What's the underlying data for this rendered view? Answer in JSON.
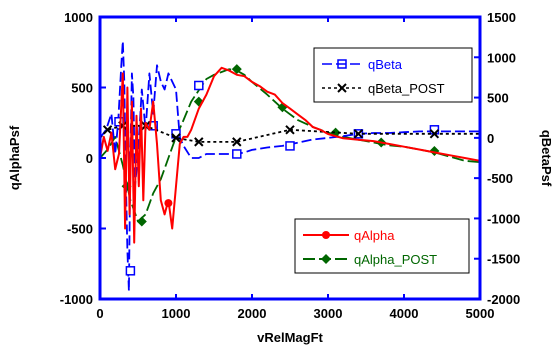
{
  "chart_data": {
    "type": "line",
    "xlabel": "vRelMagFt",
    "ylabel_left": "qAlphaPsf",
    "ylabel_right": "qBetaPsf",
    "xlim": [
      0,
      5000
    ],
    "ylim_left": [
      -1000,
      1000
    ],
    "ylim_right": [
      -2000,
      1500
    ],
    "x_ticks": [
      "0",
      "1000",
      "2000",
      "3000",
      "4000",
      "5000"
    ],
    "y_ticks_left": [
      "-1000",
      "-500",
      "0",
      "500",
      "1000"
    ],
    "y_ticks_right": [
      "-2000",
      "-1500",
      "-1000",
      "-500",
      "0",
      "500",
      "1000",
      "1500"
    ],
    "colors": {
      "qBeta": "#0000ff",
      "qBeta_POST": "#000000",
      "qAlpha": "#ff0000",
      "qAlpha_POST": "#006600",
      "frame": "#0000ff"
    },
    "legend_top": {
      "position": "top-right",
      "entries": [
        "qBeta",
        "qBeta_POST"
      ]
    },
    "legend_bottom": {
      "position": "bottom-right",
      "entries": [
        "qAlpha",
        "qAlpha_POST"
      ]
    },
    "series": [
      {
        "name": "qBeta",
        "axis": "right",
        "marker": "square",
        "dash": "10,4",
        "x": [
          0,
          80,
          150,
          200,
          240,
          280,
          300,
          320,
          340,
          360,
          380,
          400,
          420,
          440,
          460,
          500,
          550,
          600,
          650,
          700,
          750,
          800,
          850,
          900,
          950,
          1000,
          1050,
          1100,
          1200,
          1300,
          1400,
          1500,
          1600,
          1700,
          1800,
          1900,
          2000,
          2200,
          2400,
          2600,
          2800,
          3000,
          3200,
          3400,
          3600,
          3800,
          4000,
          4200,
          4400,
          4600,
          4800,
          5000
        ],
        "y": [
          0,
          100,
          300,
          -200,
          200,
          900,
          1200,
          700,
          -500,
          -1400,
          -1900,
          -200,
          800,
          500,
          -600,
          -200,
          600,
          100,
          800,
          300,
          900,
          700,
          600,
          800,
          700,
          600,
          0,
          -100,
          -250,
          -250,
          -200,
          -200,
          -200,
          -200,
          -200,
          -180,
          -150,
          -120,
          -100,
          -60,
          -20,
          0,
          20,
          50,
          60,
          60,
          70,
          80,
          80,
          80,
          80,
          80
        ],
        "marker_x": [
          250,
          400,
          700,
          1000,
          1300,
          1800,
          2500,
          3400,
          4400
        ],
        "marker_y": [
          200,
          -1650,
          150,
          50,
          650,
          -200,
          -100,
          50,
          100
        ]
      },
      {
        "name": "qBeta_POST",
        "axis": "right",
        "marker": "x",
        "dash": "3,3",
        "x": [
          0,
          100,
          300,
          600,
          1000,
          1300,
          1800,
          2500,
          3400,
          4400,
          5000
        ],
        "y": [
          0,
          100,
          150,
          150,
          0,
          -50,
          -50,
          100,
          50,
          50,
          50
        ],
        "marker_x": [
          100,
          300,
          600,
          1000,
          1300,
          1800,
          2500,
          3400,
          4400
        ],
        "marker_y": [
          100,
          150,
          150,
          0,
          -50,
          -50,
          100,
          50,
          50
        ]
      },
      {
        "name": "qAlpha",
        "axis": "left",
        "marker": "circle",
        "dash": "",
        "x": [
          0,
          50,
          100,
          150,
          200,
          250,
          300,
          330,
          360,
          390,
          420,
          450,
          480,
          510,
          540,
          570,
          600,
          650,
          700,
          750,
          800,
          850,
          900,
          950,
          1000,
          1050,
          1100,
          1150,
          1200,
          1300,
          1400,
          1500,
          1600,
          1700,
          1800,
          1900,
          2000,
          2100,
          2200,
          2300,
          2400,
          2500,
          2600,
          2700,
          2800,
          2900,
          3000,
          3200,
          3400,
          3600,
          3800,
          4000,
          4200,
          4400,
          4600,
          4800,
          5000
        ],
        "y": [
          0,
          150,
          50,
          180,
          -80,
          30,
          600,
          -500,
          500,
          -400,
          400,
          -600,
          300,
          -200,
          350,
          -300,
          250,
          200,
          400,
          100,
          -300,
          -400,
          -300,
          -500,
          -200,
          100,
          150,
          150,
          200,
          350,
          450,
          580,
          640,
          620,
          590,
          580,
          540,
          510,
          470,
          450,
          390,
          350,
          310,
          270,
          220,
          200,
          170,
          140,
          130,
          120,
          100,
          80,
          60,
          40,
          20,
          0,
          -20
        ],
        "marker_x": [
          900
        ],
        "marker_y": [
          -320
        ]
      },
      {
        "name": "qAlpha_POST",
        "axis": "left",
        "marker": "diamond",
        "dash": "12,4",
        "x": [
          0,
          100,
          200,
          300,
          400,
          500,
          600,
          700,
          800,
          900,
          1000,
          1100,
          1200,
          1300,
          1400,
          1500,
          1600,
          1700,
          1800,
          1900,
          2000,
          2200,
          2400,
          2600,
          2800,
          3000,
          3200,
          3400,
          3600,
          3800,
          4000,
          4200,
          4400,
          4600,
          4800,
          5000
        ],
        "y": [
          0,
          60,
          150,
          -50,
          -300,
          -450,
          -400,
          -250,
          -150,
          0,
          150,
          270,
          400,
          480,
          560,
          590,
          610,
          630,
          620,
          590,
          540,
          450,
          350,
          270,
          220,
          180,
          150,
          130,
          110,
          90,
          80,
          60,
          40,
          10,
          -20,
          -30
        ],
        "marker_x": [
          350,
          550,
          1300,
          1800,
          2400,
          3100,
          3700,
          4400
        ],
        "marker_y": [
          -200,
          -450,
          400,
          630,
          360,
          180,
          110,
          50
        ]
      }
    ]
  }
}
